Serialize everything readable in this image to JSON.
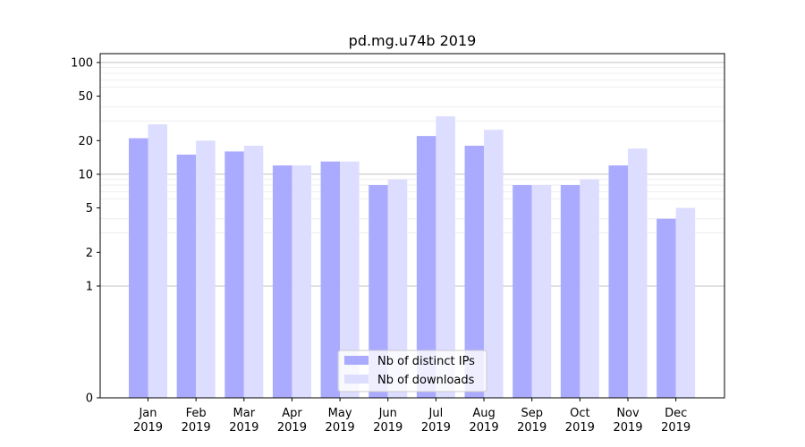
{
  "chart_data": {
    "type": "bar",
    "title": "pd.mg.u74b 2019",
    "xlabel": "",
    "ylabel": "",
    "yscale": "symlog",
    "ylim": [
      0,
      120
    ],
    "yticks": [
      0,
      1,
      2,
      5,
      10,
      20,
      50,
      100
    ],
    "ytick_labels": [
      "0",
      "1",
      "2",
      "5",
      "10",
      "20",
      "50",
      "100"
    ],
    "categories": [
      "Jan\n2019",
      "Feb\n2019",
      "Mar\n2019",
      "Apr\n2019",
      "May\n2019",
      "Jun\n2019",
      "Jul\n2019",
      "Aug\n2019",
      "Sep\n2019",
      "Oct\n2019",
      "Nov\n2019",
      "Dec\n2019"
    ],
    "category_lines": [
      [
        "Jan",
        "2019"
      ],
      [
        "Feb",
        "2019"
      ],
      [
        "Mar",
        "2019"
      ],
      [
        "Apr",
        "2019"
      ],
      [
        "May",
        "2019"
      ],
      [
        "Jun",
        "2019"
      ],
      [
        "Jul",
        "2019"
      ],
      [
        "Aug",
        "2019"
      ],
      [
        "Sep",
        "2019"
      ],
      [
        "Oct",
        "2019"
      ],
      [
        "Nov",
        "2019"
      ],
      [
        "Dec",
        "2019"
      ]
    ],
    "series": [
      {
        "name": "Nb of distinct IPs",
        "color": "#aaaaff",
        "values": [
          21,
          15,
          16,
          12,
          13,
          8,
          22,
          18,
          8,
          8,
          12,
          4
        ]
      },
      {
        "name": "Nb of downloads",
        "color": "#ddddff",
        "values": [
          28,
          20,
          18,
          12,
          13,
          9,
          33,
          25,
          8,
          9,
          17,
          5
        ]
      }
    ],
    "grid": true,
    "legend_position": "bottom-center"
  }
}
